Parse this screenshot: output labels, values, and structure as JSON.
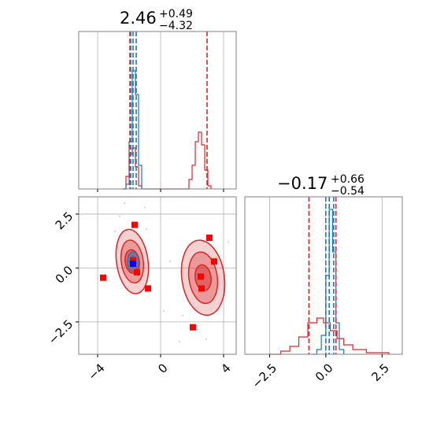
{
  "chart_data": {
    "type": "corner",
    "colors": {
      "blue": "#1f77b4",
      "red": "#d62728",
      "red_fill": "#f4a6a8",
      "marker_red": "#ff0000",
      "marker_blue": "#0000ff",
      "grid": "#b0b0b0",
      "frame": "#808080"
    },
    "grid": true,
    "panels": [
      {
        "id": "hist-param1",
        "kind": "histogram",
        "title_main": "2.46",
        "title_plus": "+0.49",
        "title_minus": "−4.32",
        "xlim": [
          -5.2,
          4.8
        ],
        "xticks": [
          -4,
          0,
          4
        ],
        "tick_labels_shown": false,
        "blue_steps": [
          {
            "x": -2.4,
            "h": 0
          },
          {
            "x": -2.2,
            "h": 0.03
          },
          {
            "x": -2.0,
            "h": 0.3
          },
          {
            "x": -1.8,
            "h": 0.75
          },
          {
            "x": -1.6,
            "h": 0.6
          },
          {
            "x": -1.4,
            "h": 0.15
          },
          {
            "x": -1.2,
            "h": 0.0
          }
        ],
        "red_steps": [
          {
            "x": -2.4,
            "h": 0.0
          },
          {
            "x": -2.2,
            "h": 0.08
          },
          {
            "x": -2.0,
            "h": 0.22
          },
          {
            "x": -1.8,
            "h": 0.26
          },
          {
            "x": -1.6,
            "h": 0.14
          },
          {
            "x": -1.4,
            "h": 0.02
          },
          {
            "x": -1.2,
            "h": 0.0
          },
          {
            "x": 1.6,
            "h": 0.0
          },
          {
            "x": 1.8,
            "h": 0.06
          },
          {
            "x": 2.0,
            "h": 0.15
          },
          {
            "x": 2.2,
            "h": 0.3
          },
          {
            "x": 2.4,
            "h": 0.36
          },
          {
            "x": 2.6,
            "h": 0.28
          },
          {
            "x": 2.8,
            "h": 0.12
          },
          {
            "x": 3.0,
            "h": 0.02
          },
          {
            "x": 3.2,
            "h": 0.0
          }
        ],
        "blue_quantiles": [
          -1.9,
          -1.75,
          -1.55
        ],
        "red_quantiles": [
          -1.95,
          2.95
        ]
      },
      {
        "id": "hist-param2",
        "kind": "histogram",
        "title_main": "−0.17",
        "title_plus": "+0.66",
        "title_minus": "−0.54",
        "xlim": [
          -3.6,
          3.4
        ],
        "xticks": [
          -2.5,
          0.0,
          2.5
        ],
        "xtick_labels": [
          "−2.5",
          "0.0",
          "2.5"
        ],
        "blue_steps": [
          {
            "x": -0.6,
            "h": 0
          },
          {
            "x": -0.4,
            "h": 0.03
          },
          {
            "x": -0.2,
            "h": 0.12
          },
          {
            "x": 0.0,
            "h": 0.5
          },
          {
            "x": 0.15,
            "h": 0.92
          },
          {
            "x": 0.3,
            "h": 0.65
          },
          {
            "x": 0.45,
            "h": 0.2
          },
          {
            "x": 0.6,
            "h": 0.03
          },
          {
            "x": 0.8,
            "h": 0
          }
        ],
        "red_steps": [
          {
            "x": -2.5,
            "h": 0
          },
          {
            "x": -2.0,
            "h": 0.02
          },
          {
            "x": -1.6,
            "h": 0.05
          },
          {
            "x": -1.2,
            "h": 0.11
          },
          {
            "x": -0.8,
            "h": 0.2
          },
          {
            "x": -0.4,
            "h": 0.23
          },
          {
            "x": -0.1,
            "h": 0.2
          },
          {
            "x": 0.2,
            "h": 0.15
          },
          {
            "x": 0.5,
            "h": 0.1
          },
          {
            "x": 0.8,
            "h": 0.06
          },
          {
            "x": 1.2,
            "h": 0.03
          },
          {
            "x": 1.8,
            "h": 0.01
          },
          {
            "x": 2.8,
            "h": 0
          }
        ],
        "blue_quantiles": [
          0.0,
          0.15,
          0.35
        ],
        "red_quantiles": [
          -0.75,
          0.45
        ]
      },
      {
        "id": "scatter-2d",
        "kind": "contour",
        "xlim": [
          -5.2,
          4.8
        ],
        "ylim": [
          -4.0,
          3.3
        ],
        "xticks": [
          -4,
          0,
          4
        ],
        "xtick_labels": [
          "−4",
          "0",
          "4"
        ],
        "yticks": [
          -2.5,
          0.0,
          2.5
        ],
        "ytick_labels": [
          "−2.5",
          "0.0",
          "2.5"
        ],
        "red_contours": [
          {
            "cx": -1.8,
            "cy": 0.3,
            "rx": 1.0,
            "ry": 1.5,
            "opacity": 0.35
          },
          {
            "cx": -1.8,
            "cy": 0.3,
            "rx": 0.7,
            "ry": 1.0,
            "opacity": 0.55
          },
          {
            "cx": -1.8,
            "cy": 0.3,
            "rx": 0.45,
            "ry": 0.55,
            "opacity": 0.8
          },
          {
            "cx": 2.7,
            "cy": -0.45,
            "rx": 1.35,
            "ry": 1.75,
            "opacity": 0.35
          },
          {
            "cx": 2.7,
            "cy": -0.45,
            "rx": 0.9,
            "ry": 1.2,
            "opacity": 0.55
          },
          {
            "cx": 2.7,
            "cy": -0.45,
            "rx": 0.5,
            "ry": 0.6,
            "opacity": 0.8
          }
        ],
        "blue_contours": [
          {
            "cx": -1.75,
            "cy": 0.3,
            "rx": 0.35,
            "ry": 0.45
          },
          {
            "cx": -1.75,
            "cy": 0.3,
            "rx": 0.2,
            "ry": 0.25
          }
        ],
        "red_markers": [
          {
            "x": -1.65,
            "y": 2.0
          },
          {
            "x": 3.1,
            "y": 1.4
          },
          {
            "x": 3.4,
            "y": 0.3
          },
          {
            "x": -1.5,
            "y": -0.2
          },
          {
            "x": -3.65,
            "y": -0.45
          },
          {
            "x": -0.8,
            "y": -0.95
          },
          {
            "x": 2.55,
            "y": -0.4
          },
          {
            "x": 2.6,
            "y": -0.95
          },
          {
            "x": 2.05,
            "y": -2.75
          },
          {
            "x": -1.75,
            "y": 0.35
          }
        ],
        "blue_markers": [
          {
            "x": -1.75,
            "y": 0.2
          }
        ],
        "faint_points": [
          {
            "x": -2.6,
            "y": 2.4
          },
          {
            "x": -1.0,
            "y": 2.8
          },
          {
            "x": -0.9,
            "y": 1.8
          },
          {
            "x": -2.9,
            "y": 1.7
          },
          {
            "x": 0.6,
            "y": 0.3
          },
          {
            "x": 1.4,
            "y": -2.2
          },
          {
            "x": 3.6,
            "y": -2.0
          },
          {
            "x": 4.3,
            "y": 1.2
          },
          {
            "x": 1.2,
            "y": -3.4
          },
          {
            "x": 2.9,
            "y": -3.3
          },
          {
            "x": -2.3,
            "y": 3.0
          },
          {
            "x": 0.2,
            "y": -2.0
          }
        ]
      }
    ]
  }
}
